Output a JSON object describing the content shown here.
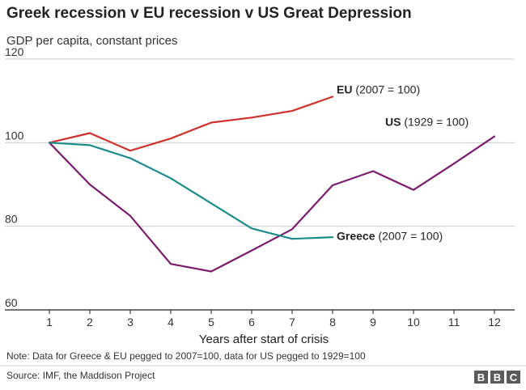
{
  "title": "Greek recession v EU recession v US Great Depression",
  "subtitle": "GDP per capita, constant prices",
  "note": "Note: Data for Greece & EU pegged to 2007=100, data for US pegged to 1929=100",
  "source": "Source: IMF, the Maddison Project",
  "logo": {
    "letters": [
      "B",
      "B",
      "C"
    ],
    "color": "#5a5a5a"
  },
  "chart_data": {
    "type": "line",
    "xlabel": "Years after start of crisis",
    "ylabel": "",
    "x_ticks": [
      1,
      2,
      3,
      4,
      5,
      6,
      7,
      8,
      9,
      10,
      11,
      12
    ],
    "y_ticks": [
      60,
      80,
      100,
      120
    ],
    "xlim": [
      0.5,
      12.5
    ],
    "ylim": [
      60,
      120
    ],
    "grid": "horizontal",
    "series": [
      {
        "name": "EU",
        "label_suffix": "(2007 = 100)",
        "color": "#d0312d",
        "label_x": 8.1,
        "label_y": 111.8,
        "x": [
          1,
          2,
          3,
          4,
          5,
          6,
          7,
          8
        ],
        "y": [
          100,
          102.3,
          98.1,
          101.0,
          104.8,
          106.0,
          107.6,
          111.0
        ]
      },
      {
        "name": "US",
        "label_suffix": "(1929 = 100)",
        "color": "#7b1c6e",
        "label_x": 9.3,
        "label_y": 104.0,
        "x": [
          1,
          2,
          3,
          4,
          5,
          6,
          7,
          8,
          9,
          10,
          11,
          12
        ],
        "y": [
          100,
          90.0,
          82.5,
          71.0,
          69.2,
          74.2,
          79.3,
          89.8,
          93.2,
          88.7,
          95.0,
          101.5
        ]
      },
      {
        "name": "Greece",
        "label_suffix": "(2007 = 100)",
        "color": "#1c8c8a",
        "label_x": 8.1,
        "label_y": 76.7,
        "x": [
          1,
          2,
          3,
          4,
          5,
          6,
          7,
          8
        ],
        "y": [
          100,
          99.4,
          96.3,
          91.5,
          85.5,
          79.5,
          77.0,
          77.4
        ]
      }
    ]
  }
}
